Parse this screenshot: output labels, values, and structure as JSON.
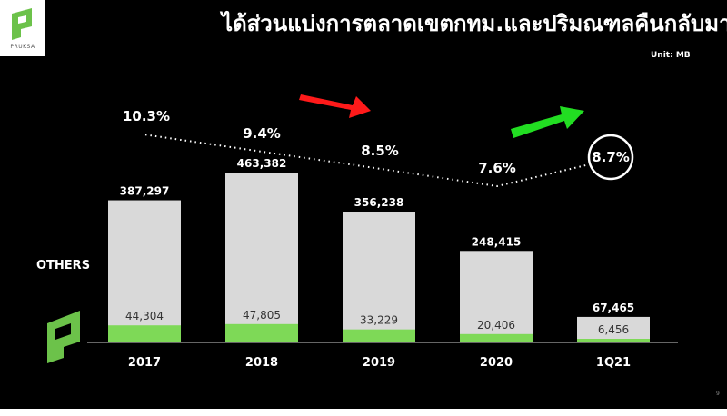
{
  "header": {
    "title": "ได้ส่วนแบ่งการตลาดเขตกทม.และปริมณฑลคืนกลับมา",
    "unit": "Unit: MB",
    "brand": "PRUKSA",
    "page_number": "9"
  },
  "colors": {
    "background": "#000000",
    "bar_total": "#d9d9d9",
    "bar_segment": "#7ed957",
    "brand_green": "#6cc24a",
    "arrow_down": "#ff1a1a",
    "arrow_up": "#22dd22"
  },
  "chart_data": {
    "type": "bar",
    "categories": [
      "2017",
      "2018",
      "2019",
      "2020",
      "1Q21"
    ],
    "series": [
      {
        "name": "",
        "values": [
          387297,
          463382,
          356238,
          248415,
          67465
        ]
      },
      {
        "name": "",
        "values": [
          44304,
          47805,
          33229,
          20406,
          6456
        ]
      }
    ],
    "total_labels": [
      "387,297",
      "463,382",
      "356,238",
      "248,415",
      "67,465"
    ],
    "segment_labels": [
      "44,304",
      "47,805",
      "33,229",
      "20,406",
      "6,456"
    ],
    "market_share": {
      "values": [
        10.3,
        9.4,
        8.5,
        7.6,
        8.7
      ],
      "labels": [
        "10.3%",
        "9.4%",
        "8.5%",
        "7.6%",
        "8.7%"
      ]
    },
    "others_label": "OTHERS",
    "ylim": [
      0,
      480000
    ],
    "grid": false,
    "legend": "none",
    "highlighted_share": "1Q21"
  }
}
